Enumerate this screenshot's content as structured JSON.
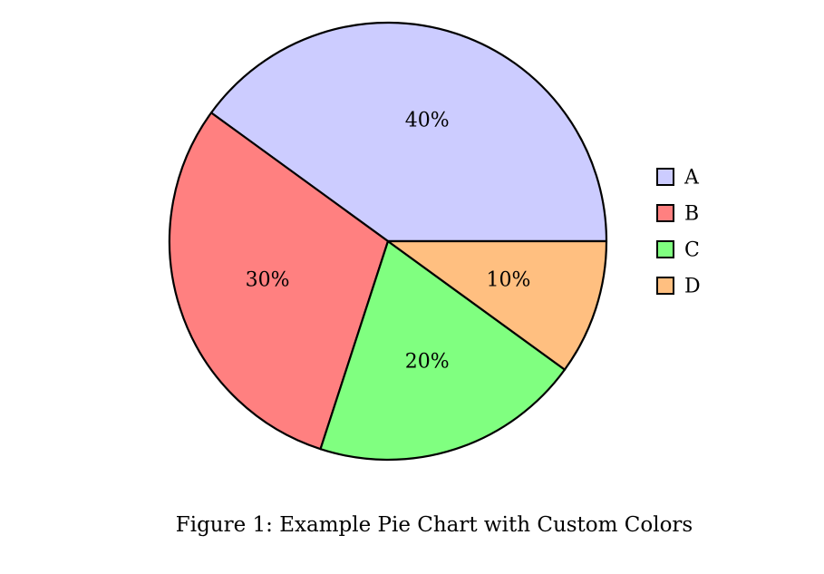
{
  "chart_data": {
    "type": "pie",
    "categories": [
      "A",
      "B",
      "C",
      "D"
    ],
    "values": [
      40,
      30,
      20,
      10
    ],
    "value_labels": [
      "40%",
      "30%",
      "20%",
      "10%"
    ],
    "colors": [
      "#ccccff",
      "#ff8080",
      "#80ff80",
      "#ffbf80"
    ],
    "start_angle_deg": 0,
    "direction": "counterclockwise",
    "legend": {
      "position": "right",
      "entries": [
        "A",
        "B",
        "C",
        "D"
      ]
    }
  },
  "caption": "Figure 1: Example Pie Chart with Custom Colors"
}
